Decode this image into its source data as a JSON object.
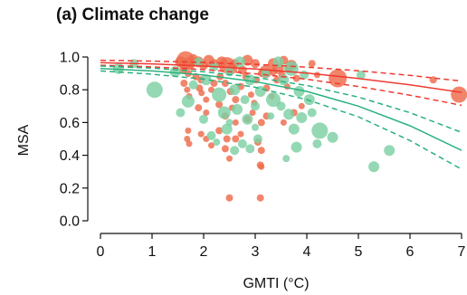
{
  "chart_data": {
    "type": "scatter",
    "title": "(a)  Climate change",
    "xlabel": "GMTI (°C)",
    "ylabel": "MSA",
    "xlim": [
      0,
      7
    ],
    "ylim": [
      0,
      1
    ],
    "xticks": [
      "0",
      "1",
      "2",
      "3",
      "4",
      "5",
      "6",
      "7"
    ],
    "yticks": [
      "0.0",
      "0.2",
      "0.4",
      "0.6",
      "0.8",
      "1.0"
    ],
    "grid": false,
    "colors": {
      "red": "#ee3a31",
      "red_points": "#ee6a4a",
      "green": "#2bb17f",
      "green_points": "#7ccfa3",
      "axis": "#111111"
    },
    "series": [
      {
        "color": "red",
        "points": [
          [
            1.55,
            0.97,
            6
          ],
          [
            1.65,
            0.98,
            10
          ],
          [
            1.72,
            0.96,
            7
          ],
          [
            1.8,
            0.99,
            5
          ],
          [
            1.9,
            0.97,
            6
          ],
          [
            2.0,
            0.95,
            5
          ],
          [
            2.1,
            0.98,
            6
          ],
          [
            2.2,
            0.96,
            5
          ],
          [
            2.35,
            0.97,
            6
          ],
          [
            2.45,
            0.95,
            9
          ],
          [
            2.55,
            0.93,
            6
          ],
          [
            2.6,
            0.96,
            5
          ],
          [
            2.75,
            0.92,
            5
          ],
          [
            2.85,
            0.98,
            6
          ],
          [
            3.0,
            0.96,
            5
          ],
          [
            3.2,
            0.91,
            7
          ],
          [
            3.35,
            0.96,
            6
          ],
          [
            3.45,
            0.93,
            6
          ],
          [
            3.55,
            0.98,
            5
          ],
          [
            3.7,
            0.95,
            6
          ],
          [
            1.6,
            0.92,
            4
          ],
          [
            1.7,
            0.9,
            4
          ],
          [
            1.85,
            0.88,
            4
          ],
          [
            1.95,
            0.86,
            4
          ],
          [
            1.62,
            0.84,
            4
          ],
          [
            1.68,
            0.8,
            3.5
          ],
          [
            1.72,
            0.76,
            3.5
          ],
          [
            1.92,
            0.81,
            4
          ],
          [
            1.96,
            0.78,
            3.5
          ],
          [
            2.05,
            0.74,
            3.5
          ],
          [
            2.15,
            0.8,
            3.5
          ],
          [
            2.2,
            0.84,
            4
          ],
          [
            2.32,
            0.88,
            4
          ],
          [
            2.42,
            0.84,
            4
          ],
          [
            2.52,
            0.79,
            4
          ],
          [
            2.62,
            0.74,
            4
          ],
          [
            2.72,
            0.82,
            4
          ],
          [
            2.82,
            0.88,
            4
          ],
          [
            2.92,
            0.77,
            3.5
          ],
          [
            2.98,
            0.72,
            3.5
          ],
          [
            3.02,
            0.86,
            4
          ],
          [
            3.12,
            0.9,
            4
          ],
          [
            3.22,
            0.81,
            4
          ],
          [
            3.32,
            0.76,
            3.5
          ],
          [
            3.42,
            0.86,
            4
          ],
          [
            3.52,
            0.89,
            4
          ],
          [
            3.62,
            0.82,
            3.5
          ],
          [
            1.9,
            0.69,
            4
          ],
          [
            2.05,
            0.66,
            3.5
          ],
          [
            2.3,
            0.71,
            4
          ],
          [
            2.42,
            0.64,
            4
          ],
          [
            2.55,
            0.69,
            3.5
          ],
          [
            2.62,
            0.6,
            3.5
          ],
          [
            2.85,
            0.62,
            4
          ],
          [
            2.95,
            0.66,
            3.5
          ],
          [
            3.12,
            0.6,
            4
          ],
          [
            3.22,
            0.64,
            4
          ],
          [
            3.55,
            0.6,
            3.5
          ],
          [
            3.75,
            0.66,
            4
          ],
          [
            3.9,
            0.7,
            3.5
          ],
          [
            1.7,
            0.55,
            3.5
          ],
          [
            1.95,
            0.53,
            3.5
          ],
          [
            2.3,
            0.55,
            4
          ],
          [
            2.45,
            0.5,
            4
          ],
          [
            2.62,
            0.5,
            4
          ],
          [
            2.72,
            0.53,
            3.5
          ],
          [
            3.05,
            0.48,
            4
          ],
          [
            3.12,
            0.43,
            4
          ],
          [
            1.68,
            0.5,
            3.5
          ],
          [
            1.72,
            0.47,
            3.5
          ],
          [
            2.05,
            0.5,
            3.5
          ],
          [
            2.15,
            0.46,
            3.5
          ],
          [
            2.42,
            0.44,
            4
          ],
          [
            2.5,
            0.38,
            3.5
          ],
          [
            3.1,
            0.34,
            4
          ],
          [
            3.12,
            0.33,
            3.5
          ],
          [
            2.5,
            0.14,
            4
          ],
          [
            3.1,
            0.14,
            4
          ],
          [
            3.65,
            0.93,
            4
          ],
          [
            3.8,
            0.87,
            4
          ],
          [
            3.35,
            0.91,
            4
          ],
          [
            4.1,
            0.96,
            4
          ],
          [
            4.2,
            0.89,
            3.5
          ],
          [
            4.6,
            0.87,
            10
          ],
          [
            6.45,
            0.86,
            4
          ],
          [
            6.95,
            0.77,
            9
          ]
        ]
      },
      {
        "color": "green",
        "points": [
          [
            0.35,
            0.93,
            6
          ],
          [
            0.65,
            0.96,
            5
          ],
          [
            1.05,
            0.8,
            9
          ],
          [
            1.45,
            0.91,
            6
          ],
          [
            1.55,
            0.66,
            5
          ],
          [
            1.7,
            0.73,
            7
          ],
          [
            1.9,
            0.97,
            5
          ],
          [
            2.05,
            0.86,
            6
          ],
          [
            2.2,
            0.94,
            5
          ],
          [
            2.3,
            0.77,
            8
          ],
          [
            2.4,
            0.66,
            7
          ],
          [
            2.5,
            0.91,
            5
          ],
          [
            2.6,
            0.8,
            6
          ],
          [
            2.7,
            0.97,
            6
          ],
          [
            2.8,
            0.74,
            5
          ],
          [
            2.9,
            0.86,
            6
          ],
          [
            3.0,
            0.7,
            5
          ],
          [
            3.1,
            0.79,
            6
          ],
          [
            3.2,
            0.9,
            5
          ],
          [
            3.35,
            0.74,
            8
          ],
          [
            3.45,
            0.97,
            6
          ],
          [
            3.55,
            0.86,
            6
          ],
          [
            3.7,
            0.93,
            8
          ],
          [
            3.85,
            0.79,
            6
          ],
          [
            3.95,
            0.89,
            5
          ],
          [
            4.05,
            0.74,
            6
          ],
          [
            3.65,
            0.65,
            6
          ],
          [
            3.9,
            0.63,
            6
          ],
          [
            3.75,
            0.56,
            6
          ],
          [
            4.25,
            0.55,
            9
          ],
          [
            4.5,
            0.51,
            6
          ],
          [
            4.2,
            0.47,
            5
          ],
          [
            3.8,
            0.45,
            6
          ],
          [
            3.6,
            0.38,
            4
          ],
          [
            2.15,
            0.52,
            5
          ],
          [
            2.45,
            0.56,
            6
          ],
          [
            2.75,
            0.47,
            5
          ],
          [
            2.9,
            0.44,
            5
          ],
          [
            3.05,
            0.5,
            5
          ],
          [
            2.25,
            0.48,
            4
          ],
          [
            2.85,
            0.62,
            6
          ],
          [
            2.65,
            0.68,
            6
          ],
          [
            3.3,
            0.64,
            4
          ],
          [
            3.5,
            0.7,
            5
          ],
          [
            2.0,
            0.62,
            5
          ],
          [
            1.8,
            0.83,
            5
          ],
          [
            2.6,
            0.43,
            5
          ],
          [
            5.05,
            0.89,
            5
          ],
          [
            5.3,
            0.33,
            6
          ],
          [
            5.6,
            0.43,
            6
          ],
          [
            3.0,
            0.57,
            4
          ],
          [
            2.5,
            0.6,
            4
          ],
          [
            4.1,
            0.66,
            5
          ]
        ]
      }
    ],
    "curves": [
      {
        "color": "red",
        "style": "solid",
        "x": [
          0,
          1,
          2,
          3,
          4,
          5,
          6,
          7
        ],
        "y": [
          0.965,
          0.958,
          0.945,
          0.927,
          0.902,
          0.869,
          0.83,
          0.784
        ]
      },
      {
        "color": "red",
        "style": "dashed",
        "x": [
          0,
          1,
          2,
          3,
          4,
          5,
          6,
          7
        ],
        "y": [
          0.98,
          0.975,
          0.967,
          0.955,
          0.938,
          0.916,
          0.888,
          0.853
        ]
      },
      {
        "color": "red",
        "style": "dashed",
        "x": [
          0,
          1,
          2,
          3,
          4,
          5,
          6,
          7
        ],
        "y": [
          0.95,
          0.94,
          0.923,
          0.898,
          0.864,
          0.82,
          0.767,
          0.705
        ]
      },
      {
        "color": "green",
        "style": "solid",
        "x": [
          0,
          1,
          2,
          3,
          4,
          5,
          6,
          7
        ],
        "y": [
          0.93,
          0.915,
          0.89,
          0.85,
          0.79,
          0.7,
          0.58,
          0.43
        ]
      },
      {
        "color": "green",
        "style": "dashed",
        "x": [
          0,
          1,
          2,
          3,
          4,
          5,
          6,
          7
        ],
        "y": [
          0.945,
          0.932,
          0.91,
          0.876,
          0.826,
          0.755,
          0.66,
          0.54
        ]
      },
      {
        "color": "green",
        "style": "dashed",
        "x": [
          0,
          1,
          2,
          3,
          4,
          5,
          6,
          7
        ],
        "y": [
          0.915,
          0.895,
          0.865,
          0.815,
          0.74,
          0.635,
          0.49,
          0.315
        ]
      }
    ]
  }
}
